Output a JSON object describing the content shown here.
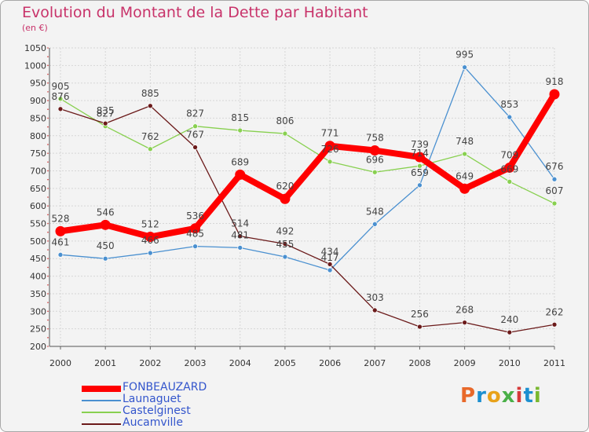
{
  "header": {
    "title": "Evolution du Montant de la Dette par Habitant",
    "subtitle": "(en €)"
  },
  "chart_data": {
    "type": "line",
    "x": [
      "2000",
      "2001",
      "2002",
      "2003",
      "2004",
      "2005",
      "2006",
      "2007",
      "2008",
      "2009",
      "2010",
      "2011"
    ],
    "ylim": [
      200,
      1050
    ],
    "yticks": [
      200,
      250,
      300,
      350,
      400,
      450,
      500,
      550,
      600,
      650,
      700,
      750,
      800,
      850,
      900,
      950,
      1000,
      1050
    ],
    "grid": true,
    "legend_position": "bottom-left",
    "series": [
      {
        "name": "FONBEAUZARD",
        "color": "#ff0000",
        "values": [
          528,
          546,
          512,
          536,
          689,
          620,
          771,
          758,
          739,
          649,
          709,
          918
        ]
      },
      {
        "name": "Launaguet",
        "color": "#4a90d0",
        "values": [
          461,
          450,
          466,
          485,
          481,
          455,
          417,
          548,
          659,
          995,
          853,
          676
        ]
      },
      {
        "name": "Castelginest",
        "color": "#88d050",
        "values": [
          905,
          827,
          762,
          827,
          815,
          806,
          726,
          696,
          714,
          748,
          669,
          607
        ]
      },
      {
        "name": "Aucamville",
        "color": "#6b1a1a",
        "values": [
          876,
          835,
          885,
          767,
          514,
          492,
          434,
          303,
          256,
          268,
          240,
          262
        ]
      }
    ]
  },
  "logo": {
    "text": "Proxiti"
  }
}
